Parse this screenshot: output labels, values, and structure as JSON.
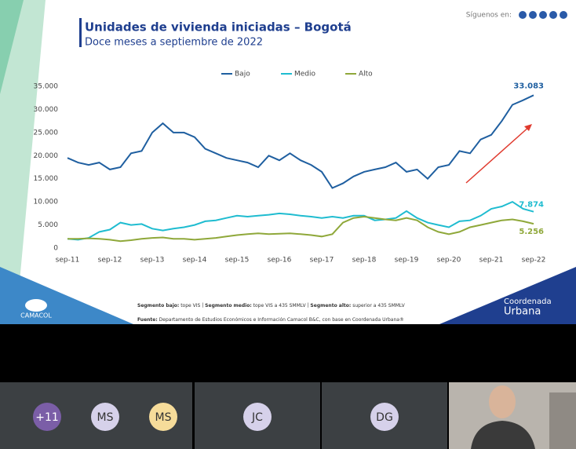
{
  "chart_data": {
    "type": "line",
    "title": "Unidades de vivienda iniciadas – Bogotá",
    "subtitle": "Doce meses a septiembre de 2022",
    "categories": [
      "sep-11",
      null,
      null,
      null,
      "sep-12",
      null,
      null,
      null,
      "sep-13",
      null,
      null,
      null,
      "sep-14",
      null,
      null,
      null,
      "sep-15",
      null,
      null,
      null,
      "sep-16",
      null,
      null,
      null,
      "sep-17",
      null,
      null,
      null,
      "sep-18",
      null,
      null,
      null,
      "sep-19",
      null,
      null,
      null,
      "sep-20",
      null,
      null,
      null,
      "sep-21",
      null,
      null,
      null,
      "sep-22"
    ],
    "series": [
      {
        "name": "Bajo",
        "color": "#1f5fa0",
        "values": [
          19500,
          18500,
          18000,
          18500,
          17000,
          17500,
          20500,
          21000,
          25000,
          27000,
          25000,
          25000,
          24000,
          21500,
          20500,
          19500,
          19000,
          18500,
          17500,
          20000,
          19000,
          20500,
          19000,
          18000,
          16500,
          13000,
          14000,
          15500,
          16500,
          17000,
          17500,
          18500,
          16500,
          17000,
          15000,
          17500,
          18000,
          21000,
          20500,
          23500,
          24500,
          27500,
          31000,
          32000,
          33083
        ],
        "value_labels": [
          null,
          null,
          null,
          null,
          null,
          null,
          null,
          null,
          null,
          null,
          null,
          null,
          null,
          null,
          null,
          null,
          null,
          null,
          null,
          null,
          null,
          null,
          null,
          null,
          null,
          null,
          null,
          null,
          null,
          null,
          null,
          null,
          null,
          null,
          null,
          null,
          null,
          null,
          null,
          null,
          null,
          null,
          null,
          null,
          "33.083"
        ]
      },
      {
        "name": "Medio",
        "color": "#1fbcd0",
        "values": [
          2000,
          1800,
          2200,
          3500,
          4000,
          5500,
          5000,
          5200,
          4200,
          3800,
          4200,
          4500,
          5000,
          5800,
          6000,
          6500,
          7000,
          6800,
          7000,
          7200,
          7500,
          7300,
          7000,
          6800,
          6500,
          6800,
          6500,
          7000,
          7000,
          6000,
          6200,
          6500,
          8000,
          6500,
          5500,
          5000,
          4500,
          5800,
          6000,
          7000,
          8500,
          9000,
          10000,
          8500,
          7874
        ],
        "value_labels": [
          null,
          null,
          null,
          null,
          null,
          null,
          null,
          null,
          null,
          null,
          null,
          null,
          null,
          null,
          null,
          null,
          null,
          null,
          null,
          null,
          null,
          null,
          null,
          null,
          null,
          null,
          null,
          null,
          null,
          null,
          null,
          null,
          null,
          null,
          null,
          null,
          null,
          null,
          null,
          null,
          null,
          null,
          null,
          null,
          "7.874"
        ]
      },
      {
        "name": "Alto",
        "color": "#8fa83a",
        "values": [
          2000,
          2000,
          2100,
          2000,
          1800,
          1500,
          1700,
          2000,
          2200,
          2300,
          2000,
          2000,
          1800,
          2000,
          2200,
          2500,
          2800,
          3000,
          3200,
          3000,
          3100,
          3200,
          3000,
          2800,
          2500,
          3000,
          5500,
          6500,
          6800,
          6500,
          6200,
          6000,
          6500,
          6000,
          4500,
          3500,
          3000,
          3500,
          4500,
          5000,
          5500,
          6000,
          6200,
          5800,
          5256
        ],
        "value_labels": [
          null,
          null,
          null,
          null,
          null,
          null,
          null,
          null,
          null,
          null,
          null,
          null,
          null,
          null,
          null,
          null,
          null,
          null,
          null,
          null,
          null,
          null,
          null,
          null,
          null,
          null,
          null,
          null,
          null,
          null,
          null,
          null,
          null,
          null,
          null,
          null,
          null,
          null,
          null,
          null,
          null,
          null,
          null,
          null,
          "5.256"
        ]
      }
    ],
    "ylim": [
      0,
      35000
    ],
    "yticks": [
      0,
      {
        "value": 5000,
        "label": "5.000"
      },
      {
        "value": 10000,
        "label": "10.000"
      },
      {
        "value": 15000,
        "label": "15.000"
      },
      {
        "value": 20000,
        "label": "20.000"
      },
      {
        "value": 25000,
        "label": "25.000"
      },
      {
        "value": 30000,
        "label": "30.000"
      },
      {
        "value": 35000,
        "label": "35.000"
      }
    ],
    "grid": false,
    "legend": "top"
  },
  "slide": {
    "follow": "Síguenos en:",
    "segments": [
      {
        "label": "Segmento bajo:",
        "text": "tope VIS"
      },
      {
        "label": "Segmento medio:",
        "text": "tope VIS a 435 SMMLV"
      },
      {
        "label": "Segmento alto:",
        "text": "superior a 435 SMMLV"
      }
    ],
    "source": {
      "label": "Fuente:",
      "text": "Departamento de Estudios Económicos e Información Camacol B&C, con base en Coordenada Urbana®"
    },
    "logo_left": "CAMACOL",
    "logo_right": [
      "Coordenada",
      "Urbana"
    ]
  },
  "participants": [
    "+11",
    "MS",
    "MS",
    "JC",
    "DG"
  ]
}
